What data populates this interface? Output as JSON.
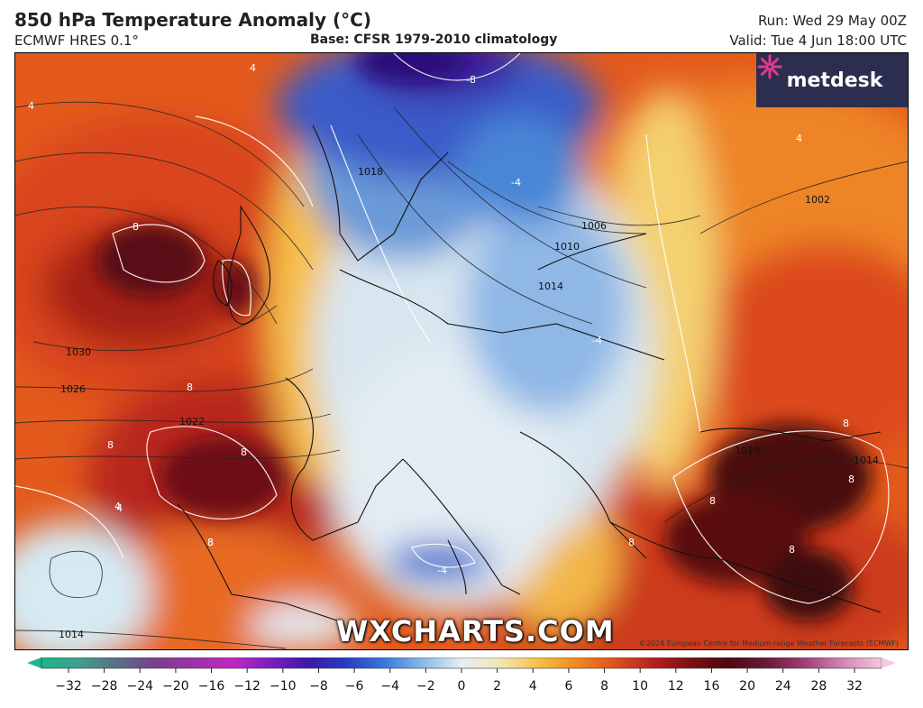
{
  "header": {
    "title": "850 hPa Temperature Anomaly (°C)",
    "model": "ECMWF HRES 0.1°",
    "base": "Base: CFSR 1979-2010 climatology",
    "run": "Run: Wed 29 May 00Z",
    "valid": "Valid: Tue 4 Jun 18:00 UTC"
  },
  "logo": {
    "text": "metdesk",
    "icon": "metdesk-star-icon",
    "accent": "#e0388c"
  },
  "watermark": "WXCHARTS.COM",
  "copyright": "©2024 European Centre for Medium-range Weather Forecasts (ECMWF)",
  "map": {
    "isobar_labels": [
      "1030",
      "1026",
      "1022",
      "1018",
      "1014",
      "1010",
      "1006",
      "1002",
      "1014",
      "1010",
      "1014"
    ],
    "anomaly_labels": [
      "8",
      "8",
      "8",
      "8",
      "8",
      "8",
      "8",
      "8",
      "4",
      "4",
      "4",
      "-4",
      "-4",
      "-8",
      "4",
      "8",
      "8",
      "8",
      "-4",
      "4"
    ]
  },
  "colorbar": {
    "ticks": [
      "−32",
      "−28",
      "−24",
      "−20",
      "−16",
      "−12",
      "−10",
      "−8",
      "−6",
      "−4",
      "−2",
      "0",
      "2",
      "4",
      "6",
      "8",
      "10",
      "12",
      "16",
      "20",
      "24",
      "28",
      "32"
    ],
    "colors": [
      "#1fb58d",
      "#3fa08c",
      "#5a6e88",
      "#7a3f8e",
      "#a030a6",
      "#c227c4",
      "#7c1fc0",
      "#3a1aa6",
      "#2a3cc4",
      "#3a7ad8",
      "#8bbce8",
      "#e4eef5",
      "#f3e6b4",
      "#f6c04a",
      "#f08a22",
      "#e0521e",
      "#b8221c",
      "#7a1016",
      "#4a0a0e",
      "#6b1a3a",
      "#a0407a",
      "#d486b4",
      "#f4c8de"
    ]
  }
}
